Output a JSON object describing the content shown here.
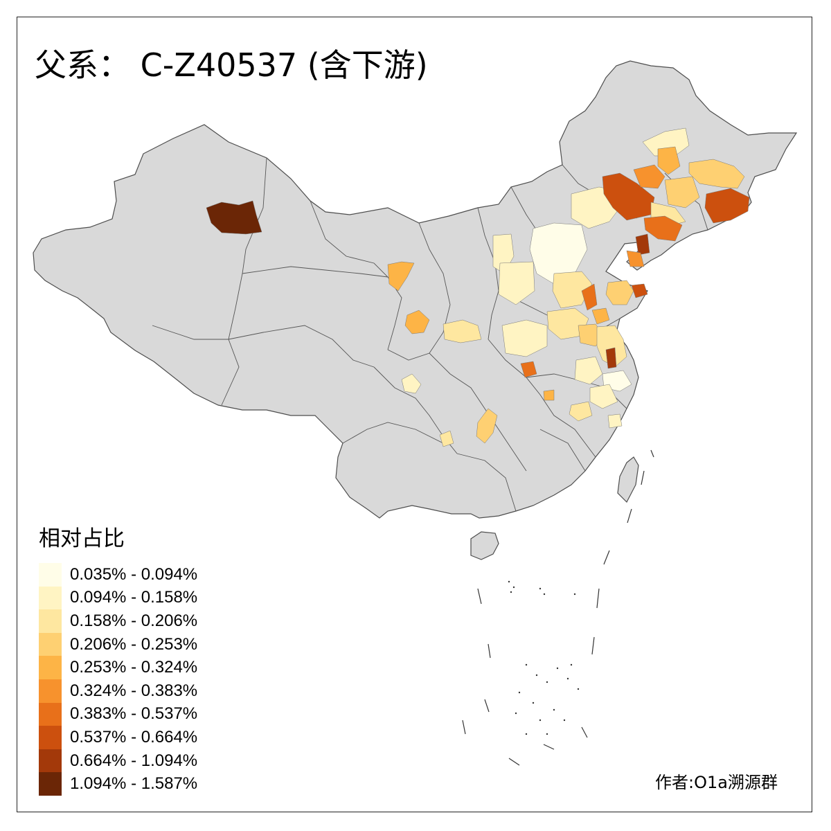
{
  "title": "父系： C-Z40537 (含下游)",
  "legend": {
    "title": "相对占比",
    "items": [
      {
        "label": "0.035% - 0.094%",
        "color": "#fffde8"
      },
      {
        "label": "0.094% - 0.158%",
        "color": "#fff4c3"
      },
      {
        "label": "0.158% - 0.206%",
        "color": "#fee7a0"
      },
      {
        "label": "0.206% - 0.253%",
        "color": "#fed072"
      },
      {
        "label": "0.253% - 0.324%",
        "color": "#fdb446"
      },
      {
        "label": "0.324% - 0.383%",
        "color": "#f7922d"
      },
      {
        "label": "0.383% - 0.537%",
        "color": "#e8701a"
      },
      {
        "label": "0.537% - 0.664%",
        "color": "#cc500e"
      },
      {
        "label": "0.664% - 1.094%",
        "color": "#a3390a"
      },
      {
        "label": "1.094% - 1.587%",
        "color": "#6b2606"
      }
    ]
  },
  "author": "作者:O1a溯源群",
  "colors": {
    "land": "#d9d9d9",
    "border": "#4d4d4d",
    "frame": "#222222"
  }
}
